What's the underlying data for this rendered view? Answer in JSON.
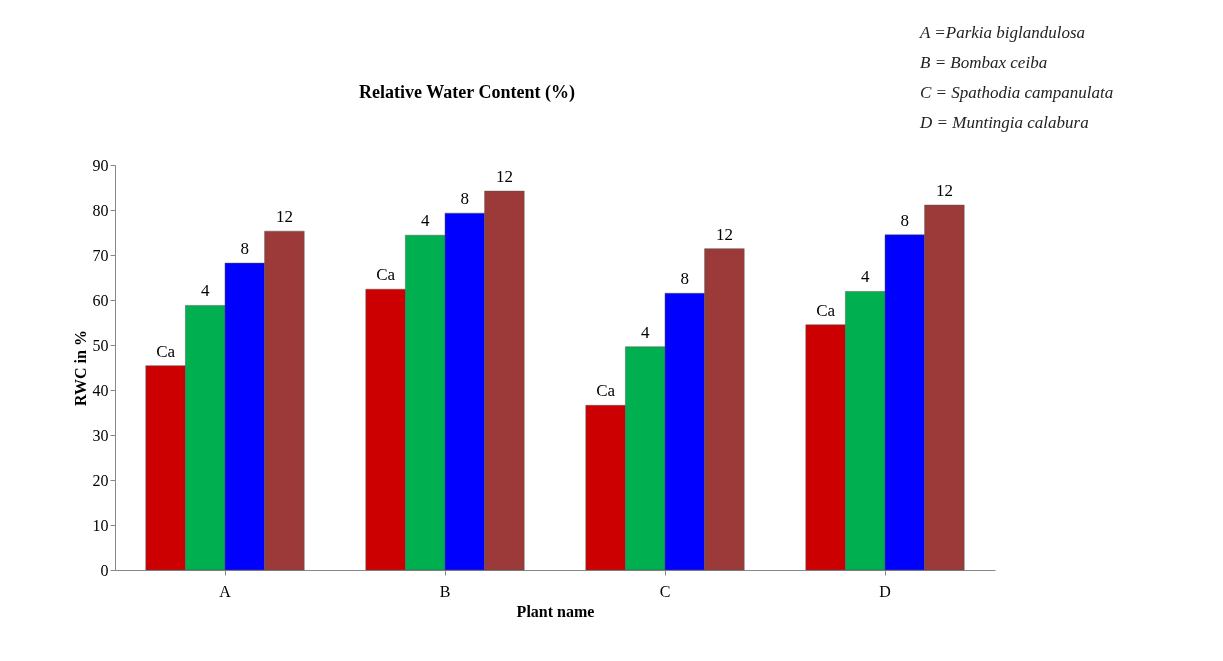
{
  "chart_data": {
    "type": "bar",
    "title": "Relative Water Content (%)",
    "xlabel": "Plant name",
    "ylabel": "RWC in %",
    "categories": [
      "A",
      "B",
      "C",
      "D"
    ],
    "series": [
      {
        "name": "Ca",
        "color": "#cc0000",
        "values": [
          45.4,
          62.4,
          36.6,
          54.5
        ]
      },
      {
        "name": "4",
        "color": "#00b050",
        "values": [
          58.8,
          74.4,
          49.6,
          61.9
        ]
      },
      {
        "name": "8",
        "color": "#0000ff",
        "values": [
          68.2,
          79.3,
          61.5,
          74.5
        ]
      },
      {
        "name": "12",
        "color": "#9b3a38",
        "values": [
          75.3,
          84.2,
          71.4,
          81.1
        ]
      }
    ],
    "ylim": [
      0,
      90
    ],
    "yticks": [
      0,
      10,
      20,
      30,
      40,
      50,
      60,
      70,
      80,
      90
    ],
    "grid": false,
    "legend": false,
    "annotations": [
      "A =Parkia biglandulosa",
      "B = Bombax ceiba",
      "C = Spathodia campanulata",
      "D = Muntingia calabura"
    ]
  }
}
